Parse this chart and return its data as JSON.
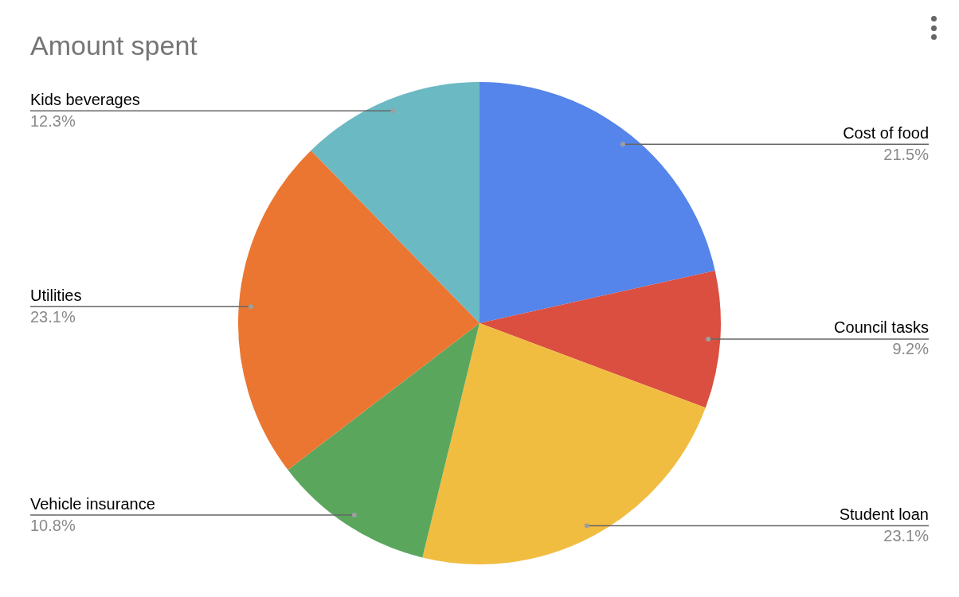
{
  "chart_data": {
    "type": "pie",
    "title": "Amount spent",
    "categories": [
      "Cost of food",
      "Council tasks",
      "Student loan",
      "Vehicle insurance",
      "Utilities",
      "Kids beverages"
    ],
    "values": [
      21.5,
      9.2,
      23.1,
      10.8,
      23.1,
      12.3
    ],
    "value_labels": [
      "21.5%",
      "9.2%",
      "23.1%",
      "10.8%",
      "23.1%",
      "12.3%"
    ],
    "colors": [
      "#5584ea",
      "#da4f3f",
      "#f1bd41",
      "#5aa65d",
      "#eb7631",
      "#6bbac3"
    ],
    "legend": false
  }
}
